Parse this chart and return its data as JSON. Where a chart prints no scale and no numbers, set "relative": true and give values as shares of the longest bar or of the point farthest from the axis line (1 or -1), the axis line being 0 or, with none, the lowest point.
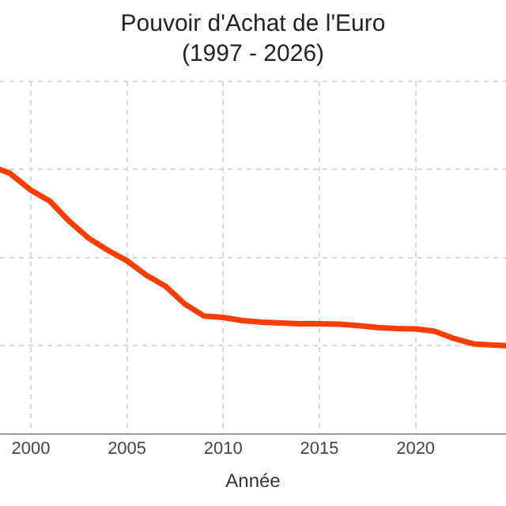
{
  "chart_data": {
    "type": "line",
    "title": "Pouvoir d'Achat de l'Euro",
    "subtitle": "(1997 - 2026)",
    "xlabel": "Année",
    "relative": true,
    "x": [
      1998.4,
      1998.9,
      2000,
      2001,
      2002,
      2003,
      2004,
      2005,
      2006,
      2007,
      2008,
      2009,
      2010,
      2011,
      2012,
      2013,
      2014,
      2015,
      2016,
      2017,
      2018,
      2019,
      2020,
      2021,
      2022,
      2023,
      2024.7
    ],
    "series": [
      {
        "color": "#ff3d00",
        "values": [
          1,
          0.98,
          0.883,
          0.82,
          0.706,
          0.611,
          0.542,
          0.482,
          0.401,
          0.338,
          0.237,
          0.169,
          0.161,
          0.143,
          0.134,
          0.129,
          0.125,
          0.125,
          0.123,
          0.115,
          0.104,
          0.098,
          0.096,
          0.082,
          0.041,
          0.011,
          0
        ]
      }
    ],
    "xlim": [
      1998.4,
      2024.7
    ],
    "xticks": [
      2000,
      2005,
      2010,
      2015,
      2020
    ],
    "grid": true,
    "legend": false,
    "marker": "none",
    "line_style": "solid"
  }
}
